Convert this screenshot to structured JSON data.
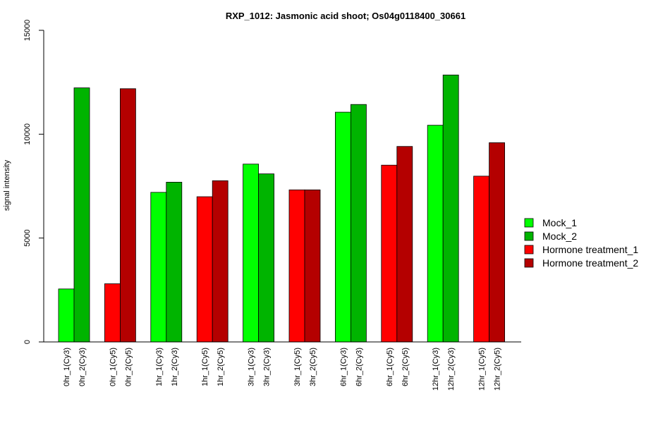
{
  "chart_data": {
    "type": "bar",
    "title": "RXP_1012: Jasmonic acid shoot; Os04g0118400_30661",
    "ylabel": "signal intensity",
    "xlabel": "",
    "ylim": [
      0,
      15000
    ],
    "yticks": [
      0,
      5000,
      10000,
      15000
    ],
    "grid": false,
    "legend_position": "right",
    "groups": [
      {
        "bars": [
          {
            "label": "0hr_1(Cy3)",
            "value": 2550,
            "series": 0
          },
          {
            "label": "0hr_2(Cy3)",
            "value": 12230,
            "series": 1
          }
        ]
      },
      {
        "bars": [
          {
            "label": "0hr_1(Cy5)",
            "value": 2800,
            "series": 2
          },
          {
            "label": "0hr_2(Cy5)",
            "value": 12190,
            "series": 3
          }
        ]
      },
      {
        "bars": [
          {
            "label": "1hr_1(Cy3)",
            "value": 7200,
            "series": 0
          },
          {
            "label": "1hr_2(Cy3)",
            "value": 7690,
            "series": 1
          }
        ]
      },
      {
        "bars": [
          {
            "label": "1hr_1(Cy5)",
            "value": 6990,
            "series": 2
          },
          {
            "label": "1hr_2(Cy5)",
            "value": 7760,
            "series": 3
          }
        ]
      },
      {
        "bars": [
          {
            "label": "3hr_1(Cy3)",
            "value": 8560,
            "series": 0
          },
          {
            "label": "3hr_2(Cy3)",
            "value": 8090,
            "series": 1
          }
        ]
      },
      {
        "bars": [
          {
            "label": "3hr_1(Cy5)",
            "value": 7320,
            "series": 2
          },
          {
            "label": "3hr_2(Cy5)",
            "value": 7320,
            "series": 3
          }
        ]
      },
      {
        "bars": [
          {
            "label": "6hr_1(Cy3)",
            "value": 11060,
            "series": 0
          },
          {
            "label": "6hr_2(Cy3)",
            "value": 11430,
            "series": 1
          }
        ]
      },
      {
        "bars": [
          {
            "label": "6hr_1(Cy5)",
            "value": 8510,
            "series": 2
          },
          {
            "label": "6hr_2(Cy5)",
            "value": 9410,
            "series": 3
          }
        ]
      },
      {
        "bars": [
          {
            "label": "12hr_1(Cy3)",
            "value": 10430,
            "series": 0
          },
          {
            "label": "12hr_2(Cy3)",
            "value": 12850,
            "series": 1
          }
        ]
      },
      {
        "bars": [
          {
            "label": "12hr_1(Cy5)",
            "value": 7980,
            "series": 2
          },
          {
            "label": "12hr_2(Cy5)",
            "value": 9590,
            "series": 3
          }
        ]
      }
    ],
    "series": [
      {
        "name": "Mock_1",
        "color": "#00ff00"
      },
      {
        "name": "Mock_2",
        "color": "#00b400"
      },
      {
        "name": "Hormone treatment_1",
        "color": "#ff0000"
      },
      {
        "name": "Hormone treatment_2",
        "color": "#b40000"
      }
    ]
  }
}
